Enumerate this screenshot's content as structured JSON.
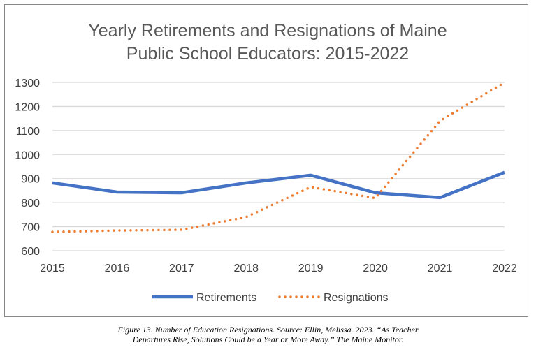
{
  "chart_data": {
    "type": "line",
    "title_lines": [
      "Yearly Retirements and Resignations of Maine",
      "Public School Educators: 2015-2022"
    ],
    "categories": [
      "2015",
      "2016",
      "2017",
      "2018",
      "2019",
      "2020",
      "2021",
      "2022"
    ],
    "yticks": [
      "600",
      "700",
      "800",
      "900",
      "1000",
      "1100",
      "1200",
      "1300"
    ],
    "ylim": [
      600,
      1300
    ],
    "grid": true,
    "legend": "bottom",
    "series": [
      {
        "name": "Retirements",
        "color": "#4472C4",
        "style": "solid",
        "values": [
          882,
          844,
          841,
          882,
          914,
          841,
          821,
          926
        ]
      },
      {
        "name": "Resignations",
        "color": "#ED7D31",
        "style": "dotted",
        "values": [
          678,
          684,
          687,
          740,
          865,
          819,
          1140,
          1300
        ]
      }
    ]
  },
  "caption": {
    "line1": "Figure 13. Number of Education Resignations. Source: Ellin, Melissa. 2023. “As Teacher",
    "line2": "Departures Rise, Solutions Could be a Year or More Away.” The Maine Monitor."
  }
}
